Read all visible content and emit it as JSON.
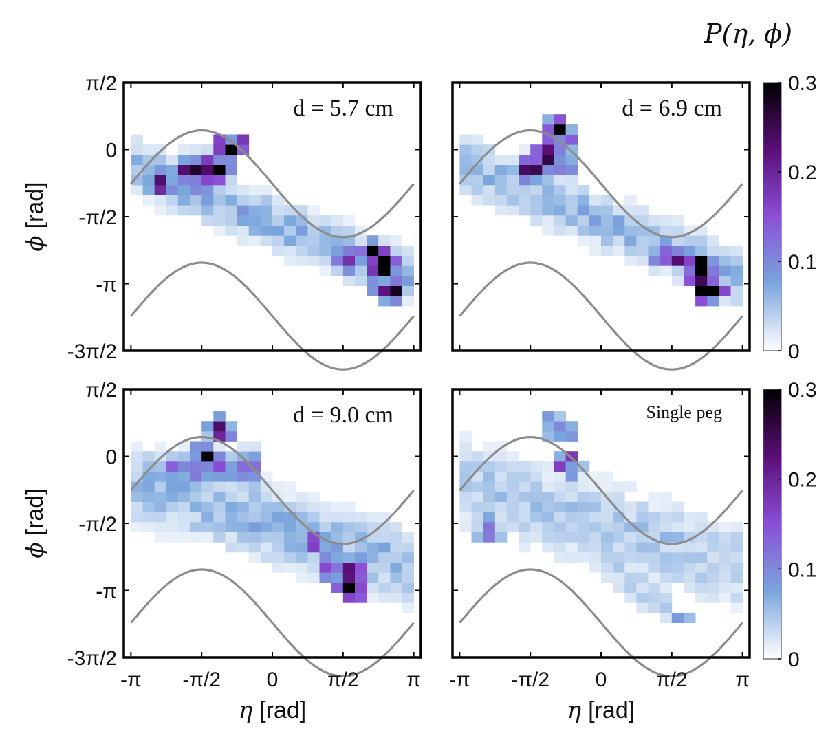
{
  "chart_data": {
    "type": "heatmap",
    "colorbar": {
      "title": "P(η, ϕ)",
      "range": [
        0,
        0.3
      ],
      "ticks": [
        "0",
        "0.1",
        "0.2",
        "0.3"
      ],
      "colors": [
        "#ffffff",
        "#7aa6dc",
        "#8a4fd6",
        "#5a0f78",
        "#000000"
      ]
    },
    "axes": {
      "xlabel_sym": "η",
      "xlabel_unit": "[rad]",
      "ylabel_sym": "ϕ",
      "ylabel_unit": "[rad]",
      "xlim": [
        -3.3,
        3.3
      ],
      "ylim": [
        -4.712,
        1.571
      ],
      "x_ticks": [
        {
          "value": -3.1416,
          "label": "-π"
        },
        {
          "value": -1.5708,
          "label": "-π/2"
        },
        {
          "value": 0,
          "label": "0"
        },
        {
          "value": 1.5708,
          "label": "π/2"
        },
        {
          "value": 3.1416,
          "label": "π"
        }
      ],
      "y_ticks": [
        {
          "value": 1.5708,
          "label": "π/2"
        },
        {
          "value": 0,
          "label": "0"
        },
        {
          "value": -1.5708,
          "label": "-π/2"
        },
        {
          "value": -3.1416,
          "label": "-π"
        },
        {
          "value": -4.7124,
          "label": "-3π/2"
        }
      ]
    },
    "boundary_curves": {
      "description_from_plot": "gray curves phi = -sin(eta) ... drawn as upper and lower bounds",
      "upper": {
        "amplitude": 1.25,
        "offset": -0.8
      },
      "lower": {
        "amplitude": 1.25,
        "offset": -3.9
      }
    },
    "grid": {
      "eta_bins": 24,
      "phi_bins": 22,
      "eta_range": [
        -3.1416,
        3.1416
      ],
      "phi_range": [
        -3.9,
        1.3
      ]
    },
    "panels": [
      {
        "label": "d = 5.7 cm",
        "tracks": [
          {
            "eta": [
              -3.1,
              3.1
            ],
            "phi": [
              -0.4,
              -3.0
            ],
            "width": 0.55,
            "peak": 0.07
          },
          {
            "eta": [
              -2.0,
              -0.8
            ],
            "phi": [
              -0.5,
              -0.3
            ],
            "width": 0.35,
            "peak": 0.16
          }
        ],
        "hotspots": [
          {
            "eta": -0.95,
            "phi": 0.05,
            "value": 0.3
          },
          {
            "eta": -1.3,
            "phi": -0.4,
            "value": 0.25
          },
          {
            "eta": -1.55,
            "phi": -0.4,
            "value": 0.22
          },
          {
            "eta": 2.15,
            "phi": -2.45,
            "value": 0.26
          },
          {
            "eta": 2.45,
            "phi": -2.7,
            "value": 0.3
          },
          {
            "eta": 2.4,
            "phi": -2.9,
            "value": 0.25
          },
          {
            "eta": 2.6,
            "phi": -3.3,
            "value": 0.2
          },
          {
            "eta": 1.75,
            "phi": -2.5,
            "value": 0.2
          },
          {
            "eta": -2.55,
            "phi": -0.8,
            "value": 0.18
          }
        ]
      },
      {
        "label": "d = 6.9 cm",
        "tracks": [
          {
            "eta": [
              -3.1,
              3.1
            ],
            "phi": [
              -0.3,
              -3.0
            ],
            "width": 0.6,
            "peak": 0.06
          },
          {
            "eta": [
              -1.8,
              -0.6
            ],
            "phi": [
              -0.5,
              -0.2
            ],
            "width": 0.35,
            "peak": 0.12
          }
        ],
        "hotspots": [
          {
            "eta": -1.2,
            "phi": -0.15,
            "value": 0.3
          },
          {
            "eta": -0.95,
            "phi": 0.45,
            "value": 0.24
          },
          {
            "eta": -1.55,
            "phi": -0.4,
            "value": 0.2
          },
          {
            "eta": 2.15,
            "phi": -2.75,
            "value": 0.3
          },
          {
            "eta": 2.2,
            "phi": -2.95,
            "value": 0.24
          },
          {
            "eta": 2.4,
            "phi": -3.25,
            "value": 0.27
          },
          {
            "eta": 1.55,
            "phi": -2.5,
            "value": 0.22
          }
        ]
      },
      {
        "label": "d = 9.0 cm",
        "tracks": [
          {
            "eta": [
              -3.1,
              3.1
            ],
            "phi": [
              -0.6,
              -2.6
            ],
            "width": 0.8,
            "peak": 0.06
          },
          {
            "eta": [
              -2.2,
              -0.4
            ],
            "phi": [
              -0.3,
              -0.3
            ],
            "width": 0.4,
            "peak": 0.1
          }
        ],
        "hotspots": [
          {
            "eta": -1.5,
            "phi": -0.05,
            "value": 0.24
          },
          {
            "eta": -1.15,
            "phi": 0.65,
            "value": 0.18
          },
          {
            "eta": 1.7,
            "phi": -2.75,
            "value": 0.28
          },
          {
            "eta": 1.8,
            "phi": -3.15,
            "value": 0.22
          },
          {
            "eta": 1.35,
            "phi": -2.65,
            "value": 0.18
          },
          {
            "eta": 0.95,
            "phi": -1.95,
            "value": 0.15
          }
        ]
      },
      {
        "label": "Single peg",
        "tracks": [
          {
            "eta": [
              -3.1,
              3.1
            ],
            "phi": [
              -0.6,
              -2.6
            ],
            "width": 0.95,
            "peak": 0.045
          },
          {
            "eta": [
              0.0,
              1.6
            ],
            "phi": [
              -2.2,
              -3.8
            ],
            "width": 0.5,
            "peak": 0.04
          }
        ],
        "hotspots": [
          {
            "eta": -0.95,
            "phi": 0.7,
            "value": 0.14
          },
          {
            "eta": -0.75,
            "phi": -0.15,
            "value": 0.15
          },
          {
            "eta": 1.75,
            "phi": -4.0,
            "value": 0.17
          },
          {
            "eta": -2.4,
            "phi": -1.75,
            "value": 0.12
          }
        ]
      }
    ]
  }
}
